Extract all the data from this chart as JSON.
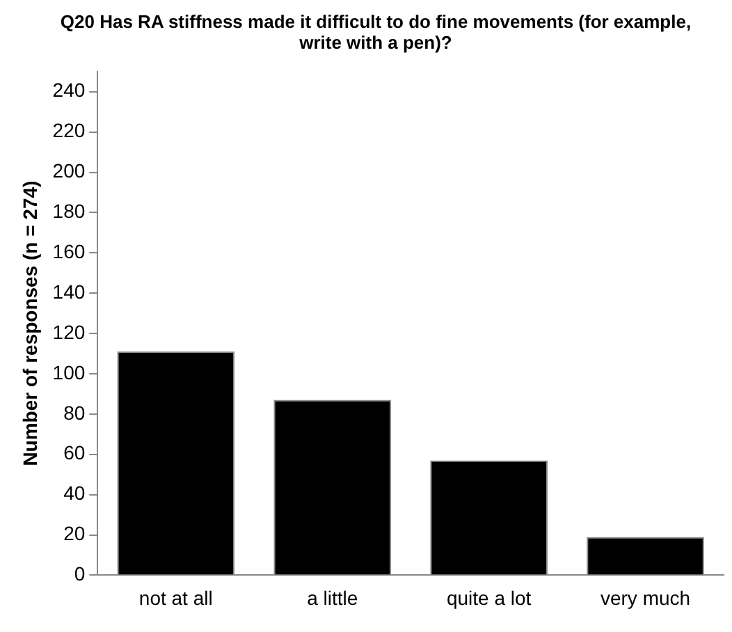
{
  "chart_data": {
    "type": "bar",
    "title": "Q20 Has RA stiffness made it difficult to do fine movements (for example, write with a pen)?",
    "ylabel": "Number of responses (n = 274)",
    "categories": [
      "not at all",
      "a little",
      "quite a lot",
      "very much"
    ],
    "values": [
      111,
      87,
      57,
      19
    ],
    "color": "#000000",
    "ylim": [
      0,
      250
    ],
    "yticks": [
      0,
      20,
      40,
      60,
      80,
      100,
      120,
      140,
      160,
      180,
      200,
      220,
      240
    ],
    "grid": false,
    "legend": false
  }
}
